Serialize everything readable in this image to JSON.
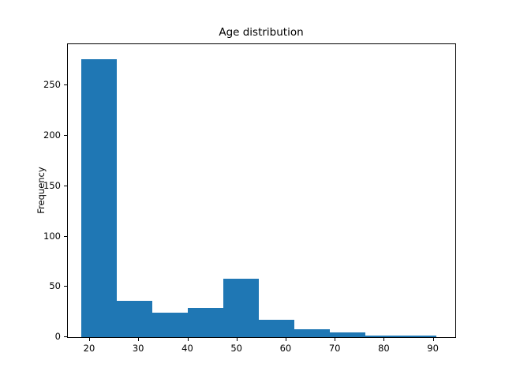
{
  "chart_data": {
    "type": "histogram",
    "title": "Age distribution",
    "xlabel": "",
    "ylabel": "Frequency",
    "bar_color": "#1f77b4",
    "text_color": "#000000",
    "bin_edges": [
      18.3,
      25.53,
      32.76,
      39.99,
      47.22,
      54.45,
      61.68,
      68.91,
      76.14,
      83.37,
      90.6
    ],
    "counts": [
      276,
      36,
      24,
      29,
      58,
      17,
      8,
      5,
      2,
      2
    ],
    "xlim": [
      15.5,
      94.4
    ],
    "ylim": [
      0,
      291
    ],
    "xticks": [
      20,
      30,
      40,
      50,
      60,
      70,
      80,
      90
    ],
    "yticks": [
      0,
      50,
      100,
      150,
      200,
      250
    ],
    "grid": false,
    "legend_position": "none"
  }
}
